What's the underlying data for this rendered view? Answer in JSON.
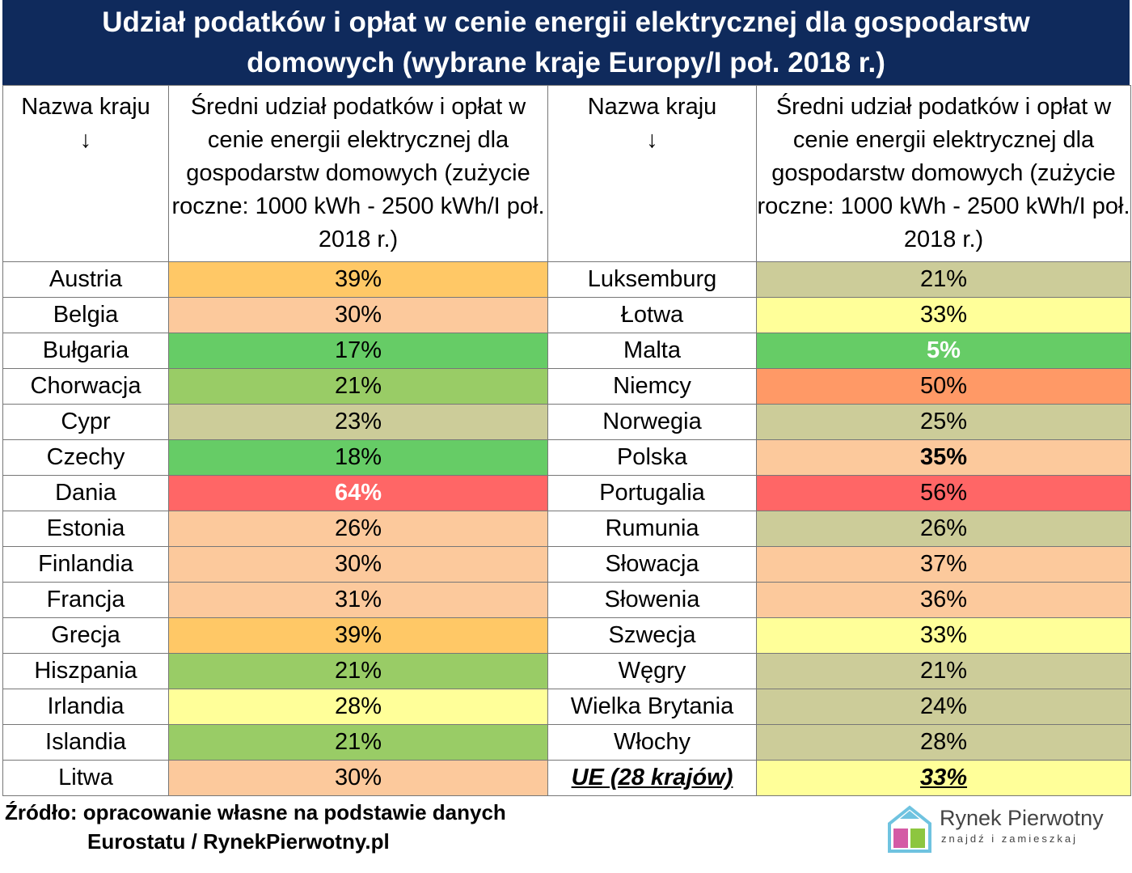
{
  "header": {
    "title": "Udział podatków i opłat w cenie energii elektrycznej dla gospodarstw domowych (wybrane kraje Europy/I poł. 2018 r.)"
  },
  "table": {
    "columns": [
      "Nazwa kraju\n↓",
      "Średni udział podatków i opłat w cenie energii elektrycznej dla gospodarstw domowych (zużycie roczne: 1000 kWh - 2500 kWh/I poł. 2018 r.)",
      "Nazwa kraju\n↓",
      "Średni udział podatków i opłat w cenie energii elektrycznej dla gospodarstw domowych (zużycie roczne: 1000 kWh - 2500 kWh/I poł. 2018 r.)"
    ],
    "rows": [
      [
        "Austria",
        "39%",
        "Luksemburg",
        "21%"
      ],
      [
        "Belgia",
        "30%",
        "Łotwa",
        "33%"
      ],
      [
        "Bułgaria",
        "17%",
        "Malta",
        "5%"
      ],
      [
        "Chorwacja",
        "21%",
        "Niemcy",
        "50%"
      ],
      [
        "Cypr",
        "23%",
        "Norwegia",
        "25%"
      ],
      [
        "Czechy",
        "18%",
        "Polska",
        "35%"
      ],
      [
        "Dania",
        "64%",
        "Portugalia",
        "56%"
      ],
      [
        "Estonia",
        "26%",
        "Rumunia",
        "26%"
      ],
      [
        "Finlandia",
        "30%",
        "Słowacja",
        "37%"
      ],
      [
        "Francja",
        "31%",
        "Słowenia",
        "36%"
      ],
      [
        "Grecja",
        "39%",
        "Szwecja",
        "33%"
      ],
      [
        "Hiszpania",
        "21%",
        "Węgry",
        "21%"
      ],
      [
        "Irlandia",
        "28%",
        "Wielka Brytania",
        "24%"
      ],
      [
        "Islandia",
        "21%",
        "Włochy",
        "28%"
      ],
      [
        "Litwa",
        "30%",
        "UE (28 krajów)",
        "33%"
      ]
    ],
    "colors": [
      [
        "#ffc866",
        "#cccc99"
      ],
      [
        "#fcc99c",
        "#ffff99"
      ],
      [
        "#66cc66",
        "#66cc66"
      ],
      [
        "#99cc66",
        "#ff9966"
      ],
      [
        "#cccc99",
        "#cccc99"
      ],
      [
        "#66cc66",
        "#fcc99c"
      ],
      [
        "#ff6666",
        "#ff6666"
      ],
      [
        "#fcc99c",
        "#cccc99"
      ],
      [
        "#fcc99c",
        "#fcc99c"
      ],
      [
        "#fcc99c",
        "#fcc99c"
      ],
      [
        "#ffc866",
        "#ffff99"
      ],
      [
        "#99cc66",
        "#cccc99"
      ],
      [
        "#ffff99",
        "#cccc99"
      ],
      [
        "#99cc66",
        "#cccc99"
      ],
      [
        "#fcc99c",
        "#ffff99"
      ]
    ]
  },
  "footer": {
    "source": [
      "Źródło: opracowanie własne na podstawie danych",
      "Eurostatu / RynekPierwotny.pl"
    ]
  },
  "logo": {
    "name": "Rynek Pierwotny",
    "tagline": "znajdź i zamieszkaj"
  }
}
